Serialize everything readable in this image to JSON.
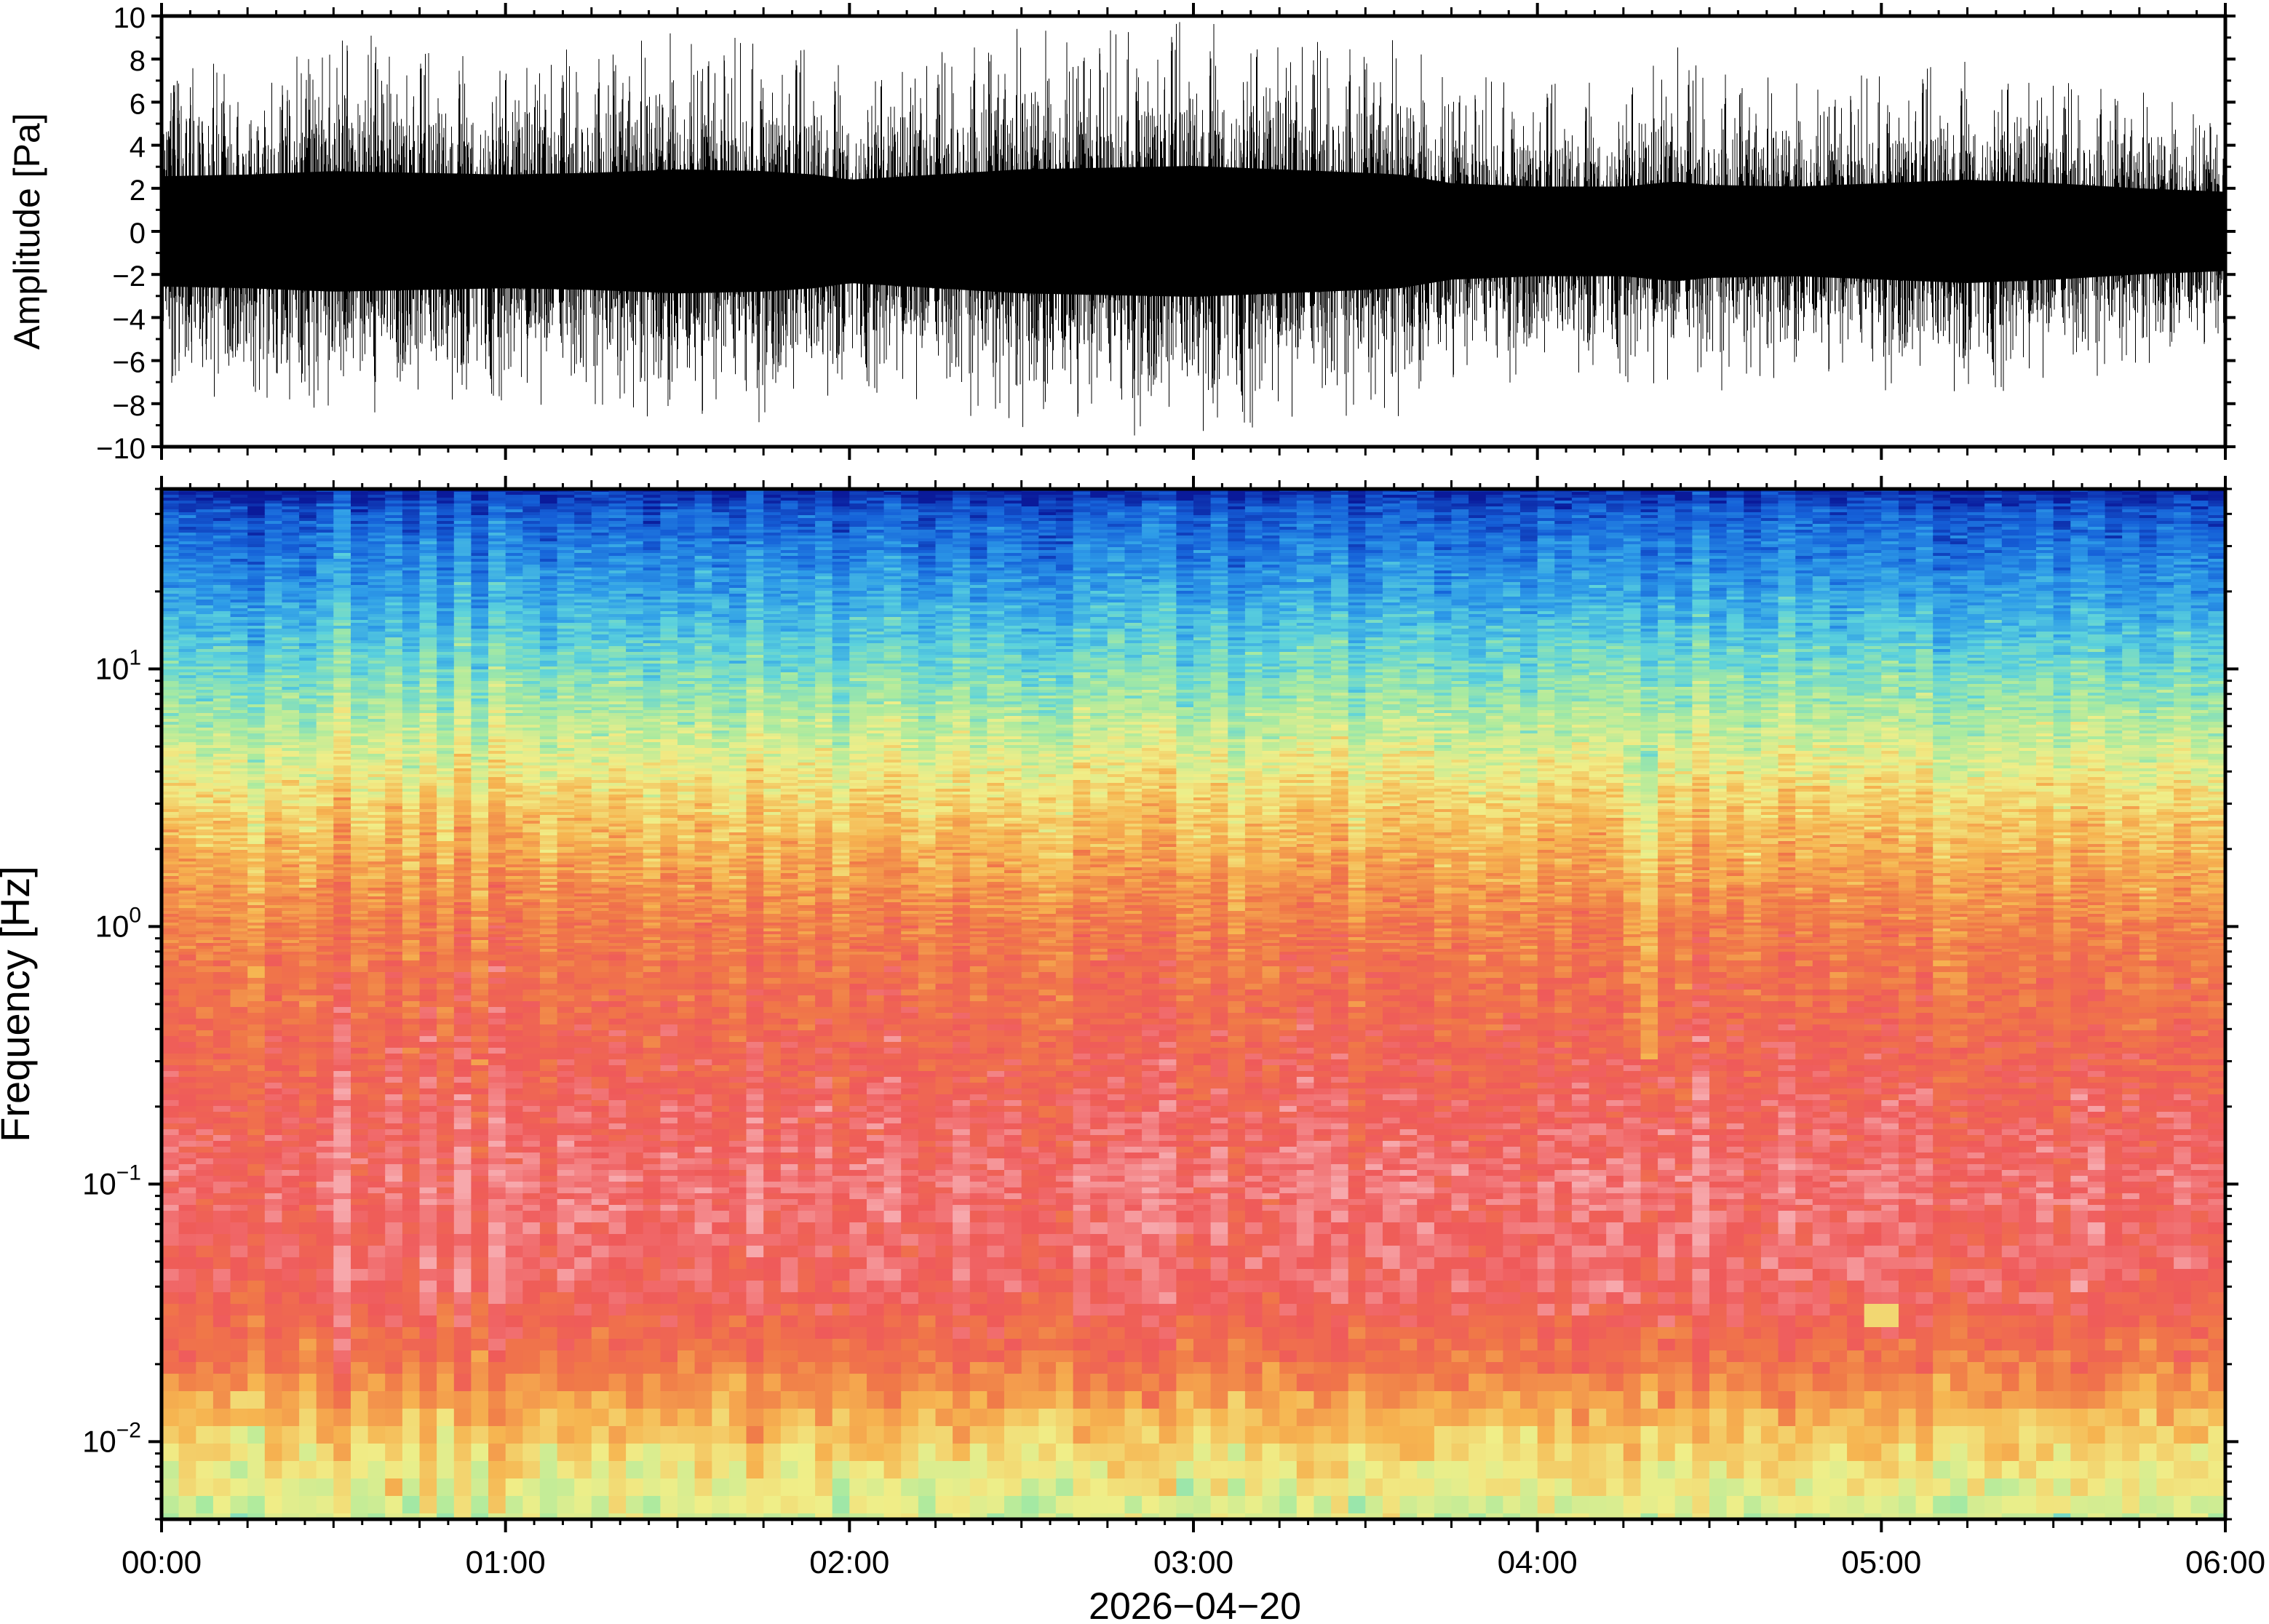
{
  "chart_data": [
    {
      "type": "line",
      "panel": "amplitude",
      "ylabel": "Amplitude [Pa]",
      "ylim": [
        -10,
        10
      ],
      "yticks": [
        -10,
        -8,
        -6,
        -4,
        -2,
        0,
        2,
        4,
        6,
        8,
        10
      ],
      "ytick_labels": [
        "−10",
        "−8",
        "−6",
        "−4",
        "−2",
        "0",
        "2",
        "4",
        "6",
        "8",
        "10"
      ],
      "xlim": [
        "00:00",
        "06:00"
      ],
      "line_color": "#000000",
      "envelope": {
        "time_h": [
          0.0,
          0.25,
          0.5,
          0.75,
          1.0,
          1.25,
          1.5,
          1.75,
          1.9,
          2.0,
          2.25,
          2.5,
          2.75,
          3.0,
          3.25,
          3.5,
          3.6,
          3.75,
          4.0,
          4.25,
          4.4,
          4.5,
          4.75,
          5.0,
          5.25,
          5.5,
          5.75,
          6.0
        ],
        "peak_pa": [
          7.0,
          7.5,
          9.0,
          8.5,
          8.0,
          8.0,
          9.5,
          9.0,
          8.5,
          7.5,
          8.0,
          9.5,
          9.5,
          10.0,
          9.0,
          8.5,
          9.0,
          7.5,
          7.0,
          7.0,
          9.0,
          7.5,
          7.0,
          7.5,
          8.0,
          7.0,
          6.5,
          5.5
        ],
        "core_pa": [
          3.2,
          3.3,
          3.5,
          3.4,
          3.3,
          3.4,
          3.6,
          3.5,
          3.3,
          3.0,
          3.3,
          3.6,
          3.7,
          3.8,
          3.6,
          3.4,
          3.3,
          2.8,
          2.6,
          2.6,
          2.9,
          2.7,
          2.6,
          2.8,
          3.0,
          2.8,
          2.5,
          2.3
        ]
      }
    },
    {
      "type": "heatmap",
      "panel": "spectrogram",
      "ylabel": "Frequency [Hz]",
      "yscale": "log",
      "ylim_hz": [
        0.005,
        50
      ],
      "yticks_hz": [
        0.01,
        0.1,
        1,
        10
      ],
      "ytick_labels": [
        {
          "base": "10",
          "exp": "−2"
        },
        {
          "base": "10",
          "exp": "−1"
        },
        {
          "base": "10",
          "exp": "0"
        },
        {
          "base": "10",
          "exp": "1"
        }
      ],
      "xlabel": "2026−04−20",
      "xlim": [
        "00:00",
        "06:00"
      ],
      "xtick_labels": [
        "00:00",
        "01:00",
        "02:00",
        "03:00",
        "04:00",
        "05:00",
        "06:00"
      ],
      "colormap": [
        "#0a1a9a",
        "#1560d8",
        "#2e9ce8",
        "#5cd2dc",
        "#a8eaa0",
        "#f0ee88",
        "#f6b450",
        "#f07848",
        "#ef5a5a",
        "#f7a8ac"
      ],
      "spectral_profile": {
        "freq_hz": [
          50,
          40,
          20,
          10,
          5,
          3,
          1,
          0.3,
          0.1,
          0.04,
          0.02,
          0.012,
          0.008,
          0.005
        ],
        "level": [
          0.02,
          0.12,
          0.24,
          0.38,
          0.52,
          0.62,
          0.78,
          0.86,
          0.93,
          0.9,
          0.8,
          0.66,
          0.58,
          0.52
        ]
      },
      "notable_events": [
        {
          "time": "04:18",
          "freq_hz_range": [
            0.3,
            5
          ]
        },
        {
          "time": "05:00",
          "freq_hz": 0.031
        }
      ]
    }
  ]
}
